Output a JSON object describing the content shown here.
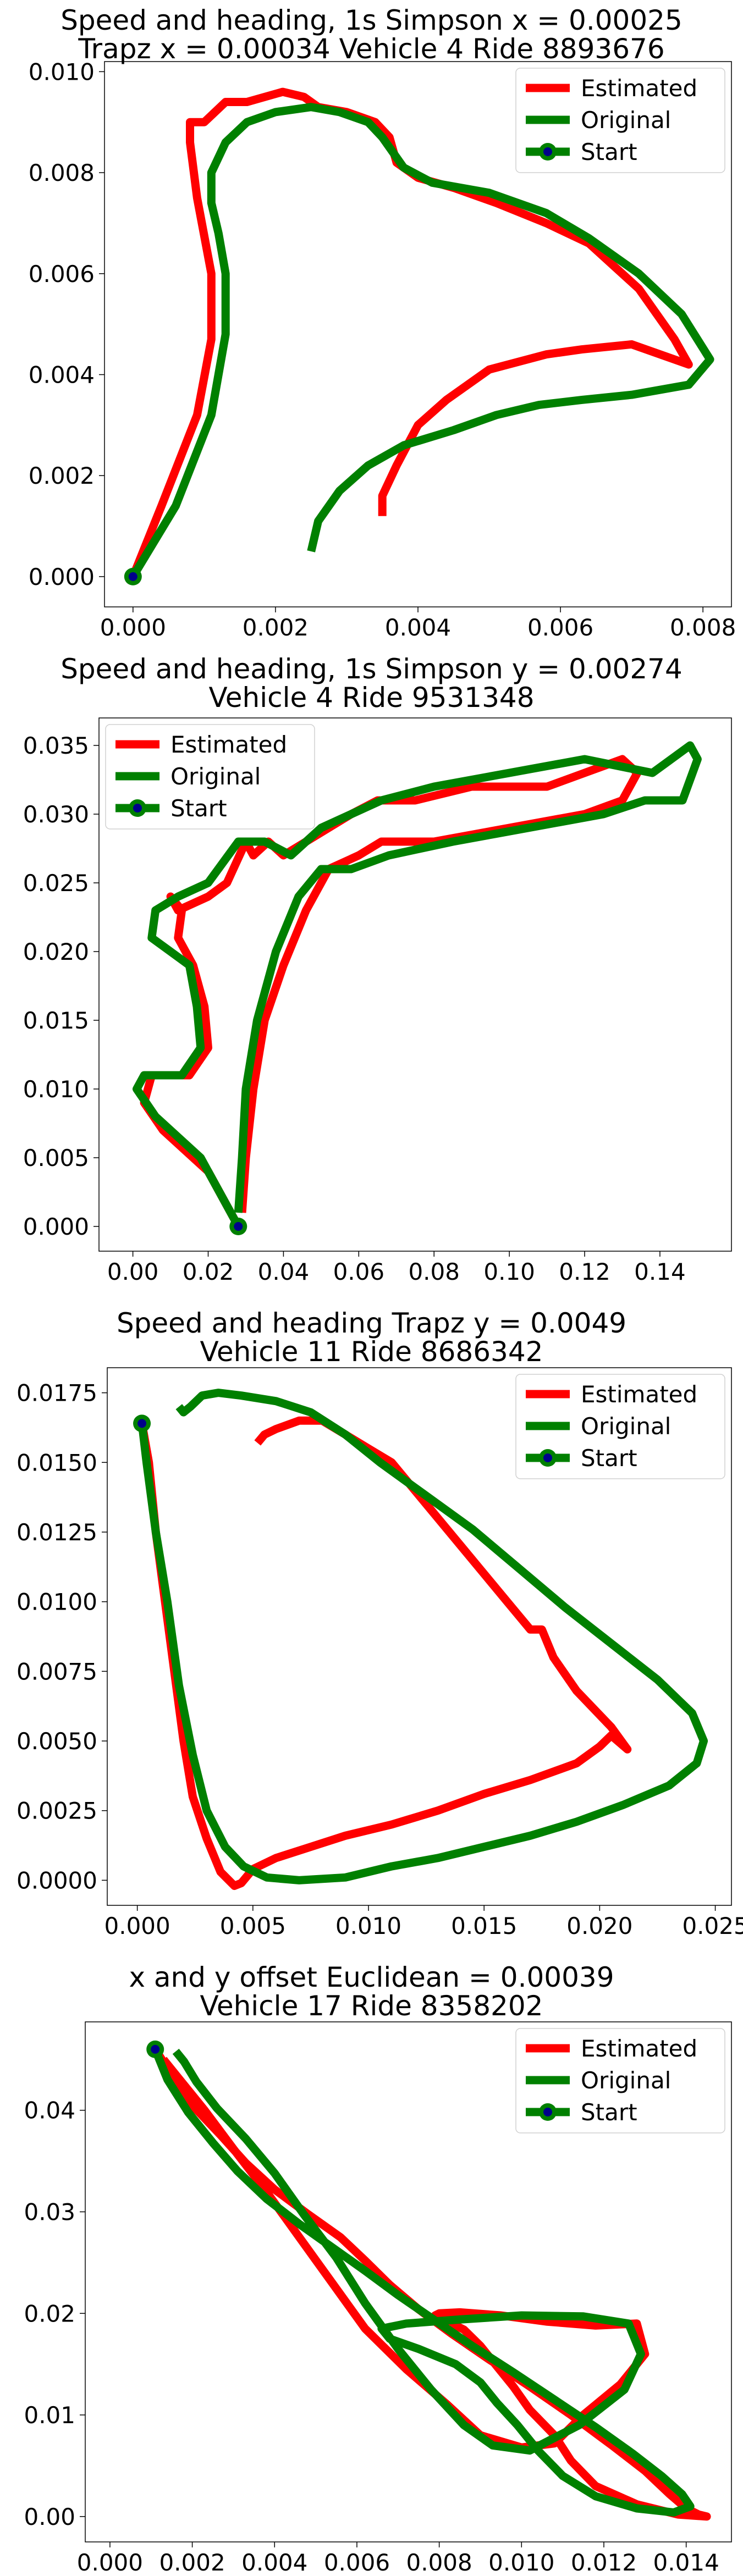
{
  "legend_labels": [
    "Estimated",
    "Original",
    "Start"
  ],
  "colors": {
    "estimated": "#ff0000",
    "original": "#008000",
    "start_marker": "#00008b"
  },
  "chart_data": [
    {
      "type": "line",
      "title": "Speed and heading, 1s Simpson x = 0.00025",
      "subtitle": "Trapz x = 0.00034 Vehicle 4 Ride 8893676",
      "xlabel": "",
      "ylabel": "",
      "xlim": [
        -0.0004,
        0.0084
      ],
      "ylim": [
        -0.0006,
        0.0102
      ],
      "xticks": [
        "0.000",
        "0.002",
        "0.004",
        "0.006",
        "0.008"
      ],
      "yticks": [
        "0.000",
        "0.002",
        "0.004",
        "0.006",
        "0.008",
        "0.010"
      ],
      "legend_position": "top-right",
      "grid": false,
      "start": [
        0.0,
        0.0
      ],
      "series": [
        {
          "name": "Estimated",
          "color": "#ff0000",
          "x": [
            0.0,
            0.0004,
            0.0009,
            0.0011,
            0.0011,
            0.0009,
            0.0008,
            0.0008,
            0.001,
            0.0013,
            0.0016,
            0.0021,
            0.0024,
            0.0026,
            0.003,
            0.0034,
            0.0036,
            0.0037,
            0.004,
            0.0045,
            0.0051,
            0.0058,
            0.0064,
            0.0071,
            0.0076,
            0.0078,
            0.007,
            0.0063,
            0.0058,
            0.005,
            0.0044,
            0.004,
            0.0037,
            0.0035,
            0.0035
          ],
          "y": [
            0.0,
            0.0014,
            0.0032,
            0.0047,
            0.006,
            0.0075,
            0.0086,
            0.009,
            0.009,
            0.0094,
            0.0094,
            0.0096,
            0.0095,
            0.0093,
            0.0092,
            0.009,
            0.0087,
            0.0082,
            0.0079,
            0.0077,
            0.0074,
            0.007,
            0.0066,
            0.0057,
            0.0047,
            0.0042,
            0.0046,
            0.0045,
            0.0044,
            0.0041,
            0.0035,
            0.003,
            0.0022,
            0.0016,
            0.0012
          ]
        },
        {
          "name": "Original",
          "color": "#008000",
          "x": [
            0.0,
            0.0006,
            0.0011,
            0.0013,
            0.0013,
            0.0012,
            0.0011,
            0.0011,
            0.0013,
            0.0016,
            0.002,
            0.0025,
            0.0029,
            0.0033,
            0.0035,
            0.0038,
            0.0042,
            0.005,
            0.0058,
            0.0064,
            0.0071,
            0.0077,
            0.0081,
            0.0078,
            0.007,
            0.0063,
            0.0057,
            0.0051,
            0.0045,
            0.0038,
            0.0033,
            0.0029,
            0.0026,
            0.0025
          ],
          "y": [
            0.0,
            0.0014,
            0.0032,
            0.0048,
            0.006,
            0.0068,
            0.0074,
            0.008,
            0.0086,
            0.009,
            0.0092,
            0.0093,
            0.0092,
            0.009,
            0.0087,
            0.0081,
            0.0078,
            0.0076,
            0.0072,
            0.0067,
            0.006,
            0.0052,
            0.0043,
            0.0038,
            0.0036,
            0.0035,
            0.0034,
            0.0032,
            0.0029,
            0.0026,
            0.0022,
            0.0017,
            0.0011,
            0.0005
          ]
        }
      ]
    },
    {
      "type": "line",
      "title": "Speed and heading, 1s Simpson y = 0.00274",
      "subtitle": "Vehicle 4 Ride 9531348",
      "xlabel": "",
      "ylabel": "",
      "xlim": [
        -0.009,
        0.159
      ],
      "ylim": [
        -0.0018,
        0.037
      ],
      "xticks": [
        "0.00",
        "0.02",
        "0.04",
        "0.06",
        "0.08",
        "0.10",
        "0.12",
        "0.14"
      ],
      "yticks": [
        "0.000",
        "0.005",
        "0.010",
        "0.015",
        "0.020",
        "0.025",
        "0.030",
        "0.035"
      ],
      "legend_position": "top-left",
      "grid": false,
      "start": [
        0.028,
        0.0
      ],
      "series": [
        {
          "name": "Estimated",
          "color": "#ff0000",
          "x": [
            0.028,
            0.02,
            0.008,
            0.003,
            0.005,
            0.015,
            0.02,
            0.019,
            0.016,
            0.012,
            0.013,
            0.01,
            0.012,
            0.02,
            0.025,
            0.03,
            0.032,
            0.036,
            0.04,
            0.046,
            0.052,
            0.058,
            0.065,
            0.075,
            0.09,
            0.11,
            0.12,
            0.13,
            0.134,
            0.13,
            0.12,
            0.1,
            0.08,
            0.066,
            0.06,
            0.052,
            0.046,
            0.04,
            0.035,
            0.032,
            0.03,
            0.029
          ],
          "y": [
            0.0,
            0.004,
            0.007,
            0.009,
            0.011,
            0.011,
            0.013,
            0.016,
            0.019,
            0.021,
            0.023,
            0.024,
            0.023,
            0.024,
            0.025,
            0.028,
            0.027,
            0.028,
            0.027,
            0.028,
            0.029,
            0.03,
            0.031,
            0.031,
            0.032,
            0.032,
            0.033,
            0.034,
            0.033,
            0.031,
            0.03,
            0.029,
            0.028,
            0.028,
            0.027,
            0.026,
            0.023,
            0.019,
            0.015,
            0.01,
            0.005,
            0.001
          ]
        },
        {
          "name": "Original",
          "color": "#008000",
          "x": [
            0.028,
            0.018,
            0.006,
            0.001,
            0.003,
            0.013,
            0.018,
            0.017,
            0.015,
            0.01,
            0.005,
            0.006,
            0.012,
            0.02,
            0.028,
            0.035,
            0.042,
            0.05,
            0.058,
            0.066,
            0.08,
            0.1,
            0.12,
            0.138,
            0.148,
            0.15,
            0.146,
            0.136,
            0.125,
            0.105,
            0.085,
            0.068,
            0.058,
            0.05,
            0.044,
            0.038,
            0.033,
            0.03,
            0.029,
            0.028
          ],
          "y": [
            0.0,
            0.005,
            0.008,
            0.01,
            0.011,
            0.011,
            0.013,
            0.016,
            0.019,
            0.02,
            0.021,
            0.023,
            0.024,
            0.025,
            0.028,
            0.028,
            0.027,
            0.029,
            0.03,
            0.031,
            0.032,
            0.033,
            0.034,
            0.033,
            0.035,
            0.034,
            0.031,
            0.031,
            0.03,
            0.029,
            0.028,
            0.027,
            0.026,
            0.026,
            0.024,
            0.02,
            0.015,
            0.01,
            0.005,
            0.001
          ]
        }
      ]
    },
    {
      "type": "line",
      "title": "Speed and heading Trapz y = 0.0049",
      "subtitle": "Vehicle 11 Ride 8686342",
      "xlabel": "",
      "ylabel": "",
      "xlim": [
        -0.0013,
        0.0257
      ],
      "ylim": [
        -0.0009,
        0.0184
      ],
      "xticks": [
        "0.000",
        "0.005",
        "0.010",
        "0.015",
        "0.020",
        "0.025"
      ],
      "yticks": [
        "0.0000",
        "0.0025",
        "0.0050",
        "0.0075",
        "0.0100",
        "0.0125",
        "0.0150",
        "0.0175"
      ],
      "legend_position": "top-right",
      "grid": false,
      "start": [
        0.0002,
        0.0164
      ],
      "series": [
        {
          "name": "Estimated",
          "color": "#ff0000",
          "x": [
            0.0002,
            0.0005,
            0.0008,
            0.0012,
            0.0016,
            0.002,
            0.0024,
            0.003,
            0.0036,
            0.0042,
            0.0045,
            0.0048,
            0.005,
            0.006,
            0.0075,
            0.009,
            0.011,
            0.013,
            0.015,
            0.017,
            0.019,
            0.02,
            0.0205,
            0.0212,
            0.0205,
            0.019,
            0.018,
            0.0175,
            0.017,
            0.016,
            0.015,
            0.014,
            0.013,
            0.012,
            0.011,
            0.01,
            0.009,
            0.008,
            0.007,
            0.006,
            0.0055,
            0.0052
          ],
          "y": [
            0.0164,
            0.015,
            0.0125,
            0.01,
            0.0075,
            0.005,
            0.003,
            0.0015,
            0.0003,
            -0.0002,
            -0.0001,
            0.0002,
            0.0004,
            0.0008,
            0.0012,
            0.0016,
            0.002,
            0.0025,
            0.0031,
            0.0036,
            0.0042,
            0.0048,
            0.0052,
            0.0047,
            0.0055,
            0.0068,
            0.008,
            0.009,
            0.009,
            0.01,
            0.011,
            0.012,
            0.013,
            0.014,
            0.015,
            0.0155,
            0.016,
            0.0165,
            0.0165,
            0.0162,
            0.016,
            0.0157
          ]
        },
        {
          "name": "Original",
          "color": "#008000",
          "x": [
            0.0002,
            0.0004,
            0.0008,
            0.0013,
            0.0018,
            0.0024,
            0.003,
            0.0038,
            0.0046,
            0.0056,
            0.007,
            0.009,
            0.011,
            0.013,
            0.015,
            0.017,
            0.019,
            0.021,
            0.023,
            0.0242,
            0.0245,
            0.024,
            0.0225,
            0.0205,
            0.0185,
            0.0165,
            0.0145,
            0.0125,
            0.0105,
            0.009,
            0.0075,
            0.006,
            0.0045,
            0.0035,
            0.0028,
            0.0023,
            0.002,
            0.0018
          ],
          "y": [
            0.0164,
            0.015,
            0.0125,
            0.01,
            0.007,
            0.0045,
            0.0025,
            0.0012,
            0.0005,
            0.0001,
            0.0,
            0.0001,
            0.0005,
            0.0008,
            0.0012,
            0.0016,
            0.0021,
            0.0027,
            0.0034,
            0.0042,
            0.005,
            0.006,
            0.0072,
            0.0085,
            0.0098,
            0.0112,
            0.0126,
            0.0138,
            0.015,
            0.016,
            0.0168,
            0.0172,
            0.0174,
            0.0175,
            0.0174,
            0.017,
            0.0168,
            0.017
          ]
        }
      ]
    },
    {
      "type": "line",
      "title": "x and y offset Euclidean = 0.00039",
      "subtitle": "Vehicle 17 Ride 8358202",
      "xlabel": "",
      "ylabel": "",
      "xlim": [
        -0.0006,
        0.0151
      ],
      "ylim": [
        -0.0025,
        0.0487
      ],
      "xticks": [
        "0.000",
        "0.002",
        "0.004",
        "0.006",
        "0.008",
        "0.010",
        "0.012",
        "0.014"
      ],
      "yticks": [
        "0.00",
        "0.01",
        "0.02",
        "0.03",
        "0.04"
      ],
      "legend_position": "top-right",
      "grid": false,
      "start": [
        0.0011,
        0.046
      ],
      "series": [
        {
          "name": "Estimated",
          "color": "#ff0000",
          "x": [
            0.0011,
            0.0015,
            0.002,
            0.0027,
            0.0033,
            0.004,
            0.0048,
            0.0056,
            0.0062,
            0.0068,
            0.0075,
            0.0083,
            0.0092,
            0.0102,
            0.0112,
            0.0122,
            0.013,
            0.0136,
            0.014,
            0.0143,
            0.0145,
            0.0138,
            0.0128,
            0.0118,
            0.0112,
            0.0108,
            0.0102,
            0.0098,
            0.0094,
            0.009,
            0.0086,
            0.0082,
            0.008,
            0.0079,
            0.008,
            0.0085,
            0.0095,
            0.0106,
            0.0118,
            0.0128,
            0.013,
            0.0124,
            0.0115,
            0.0108,
            0.01,
            0.009,
            0.0082,
            0.0072,
            0.0062,
            0.0054,
            0.0046,
            0.0038,
            0.003,
            0.0023,
            0.0017,
            0.0013
          ],
          "y": [
            0.046,
            0.0435,
            0.0405,
            0.0375,
            0.0348,
            0.0322,
            0.0298,
            0.0275,
            0.0252,
            0.0228,
            0.0204,
            0.018,
            0.0155,
            0.0128,
            0.01,
            0.007,
            0.0045,
            0.0022,
            0.0008,
            0.0002,
            0.0,
            0.0002,
            0.0012,
            0.003,
            0.0055,
            0.008,
            0.0105,
            0.0128,
            0.0148,
            0.0168,
            0.0184,
            0.0192,
            0.0195,
            0.0198,
            0.02,
            0.0201,
            0.0198,
            0.0192,
            0.0188,
            0.019,
            0.016,
            0.013,
            0.01,
            0.0072,
            0.0068,
            0.008,
            0.011,
            0.0145,
            0.0185,
            0.023,
            0.0275,
            0.032,
            0.0362,
            0.04,
            0.043,
            0.045
          ]
        },
        {
          "name": "Original",
          "color": "#008000",
          "x": [
            0.0011,
            0.0014,
            0.0019,
            0.0025,
            0.0031,
            0.0038,
            0.0046,
            0.0054,
            0.0062,
            0.007,
            0.0079,
            0.0088,
            0.0098,
            0.0108,
            0.0118,
            0.0127,
            0.0134,
            0.0139,
            0.0141,
            0.0137,
            0.0128,
            0.0118,
            0.011,
            0.0104,
            0.0099,
            0.0094,
            0.009,
            0.0084,
            0.0075,
            0.0068,
            0.0066,
            0.0072,
            0.0085,
            0.01,
            0.0115,
            0.0126,
            0.0129,
            0.0125,
            0.0114,
            0.0102,
            0.0093,
            0.0086,
            0.0078,
            0.007,
            0.0062,
            0.0055,
            0.0047,
            0.004,
            0.0033,
            0.0026,
            0.0021,
            0.0018,
            0.0016
          ],
          "y": [
            0.046,
            0.043,
            0.0398,
            0.0368,
            0.034,
            0.0313,
            0.0288,
            0.0265,
            0.0242,
            0.0218,
            0.0193,
            0.0168,
            0.0142,
            0.0115,
            0.0088,
            0.0062,
            0.004,
            0.0022,
            0.001,
            0.0004,
            0.0008,
            0.002,
            0.004,
            0.0065,
            0.009,
            0.0112,
            0.0132,
            0.015,
            0.0165,
            0.0175,
            0.0185,
            0.019,
            0.0194,
            0.0198,
            0.0197,
            0.019,
            0.016,
            0.0125,
            0.009,
            0.0065,
            0.007,
            0.009,
            0.0125,
            0.0165,
            0.021,
            0.0255,
            0.0298,
            0.0338,
            0.0372,
            0.0402,
            0.0428,
            0.0448,
            0.0458
          ]
        }
      ]
    }
  ]
}
